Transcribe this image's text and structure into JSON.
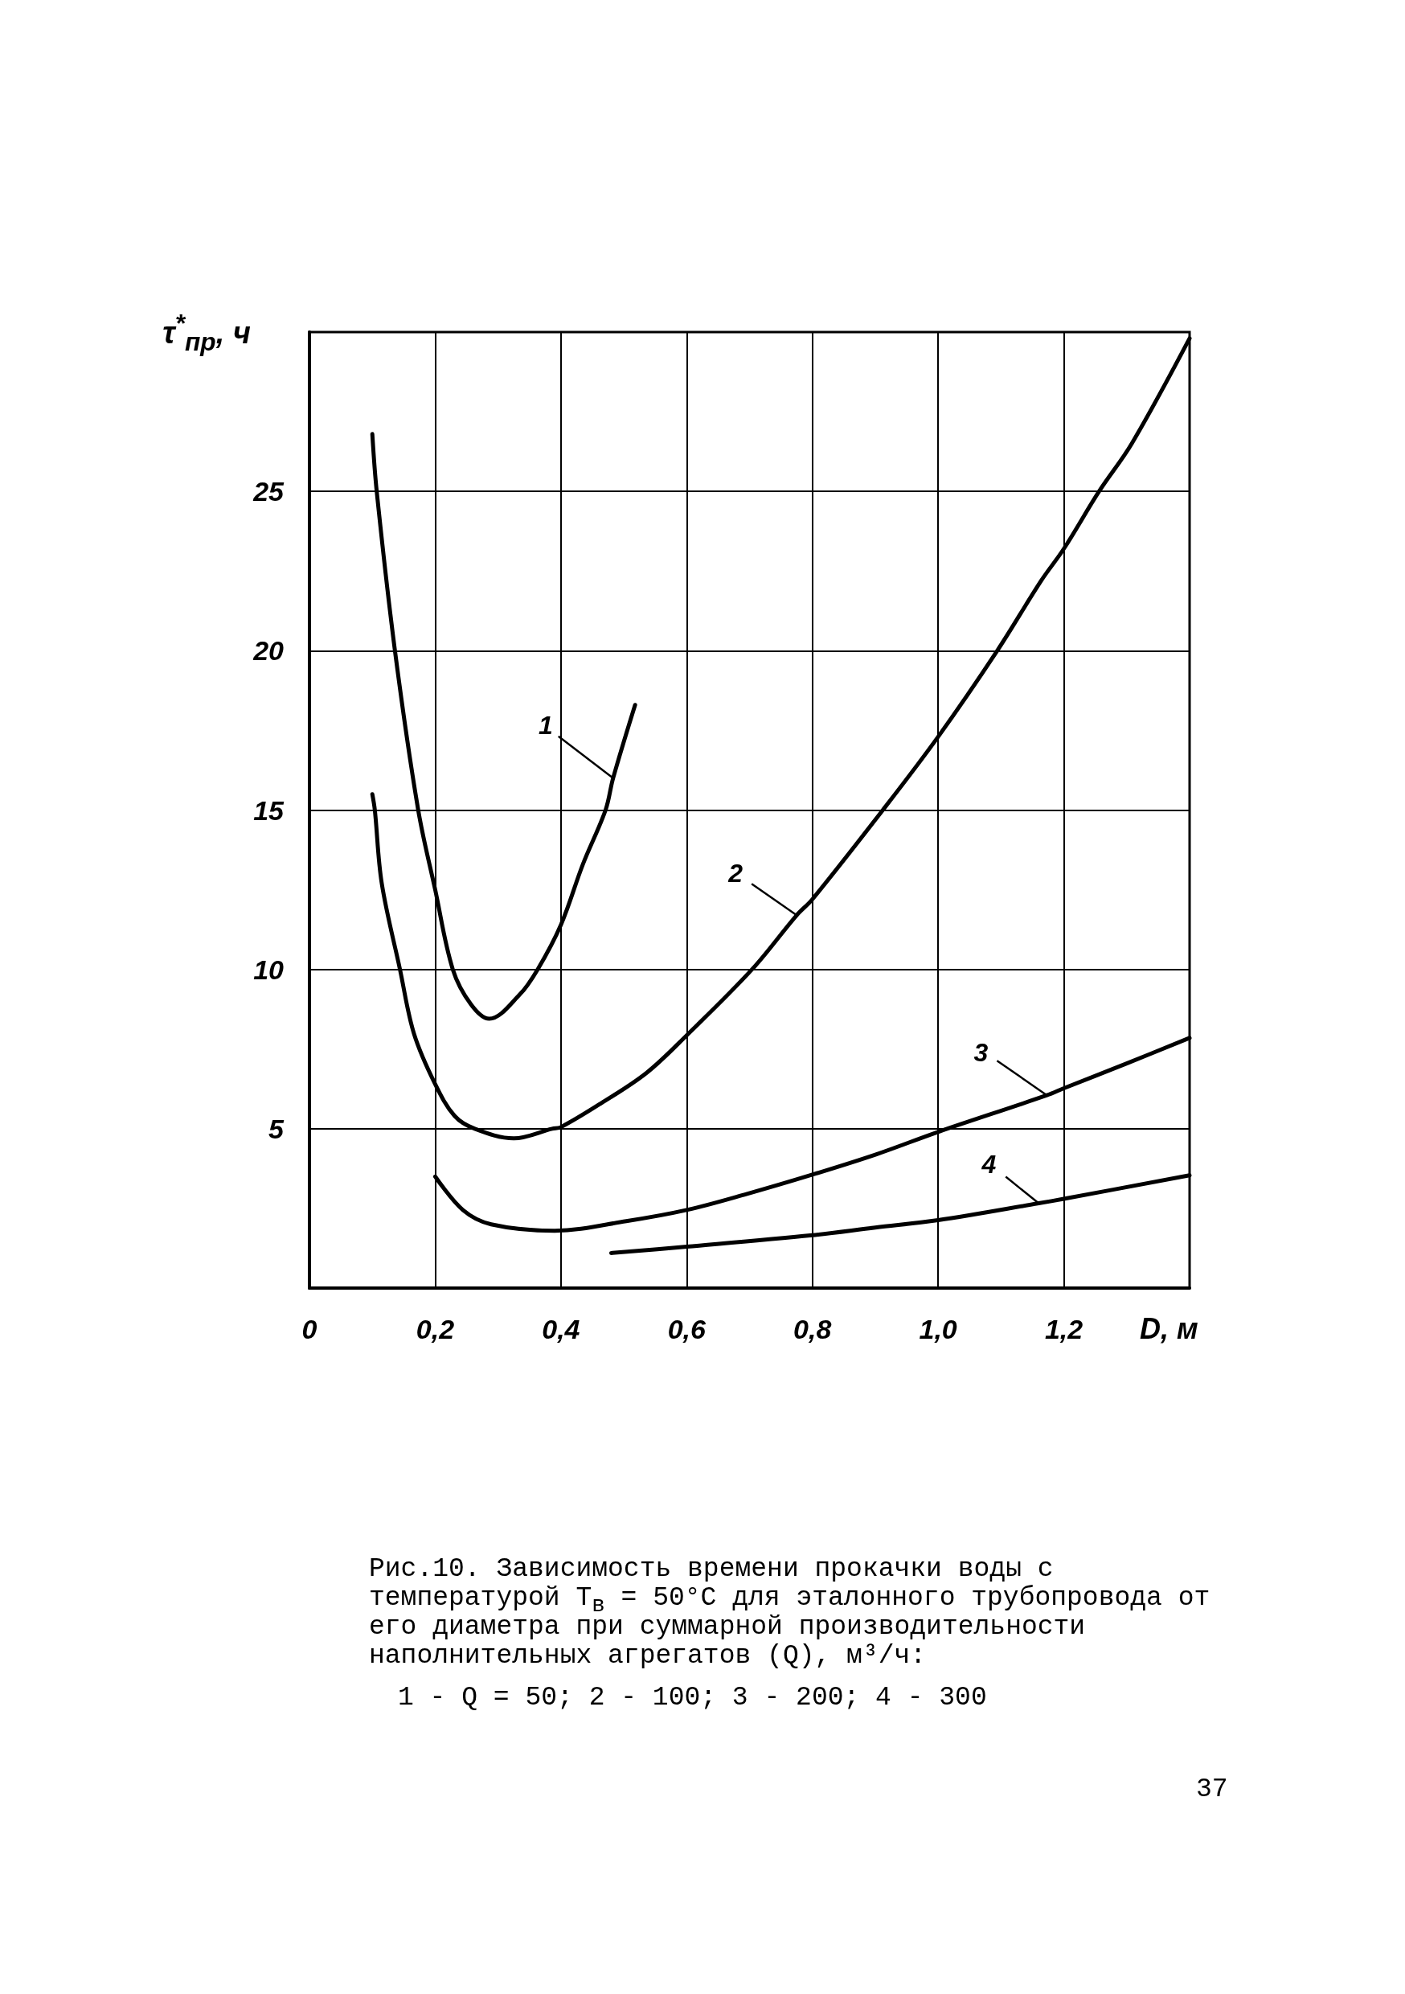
{
  "chart_data": {
    "type": "line",
    "xlabel": "D, м",
    "ylabel": "τ$^{*}$$_{пр}$, ч",
    "xlim": [
      0,
      1.4
    ],
    "ylim": [
      0,
      30
    ],
    "xticks": [
      0,
      {
        "value": 0.2,
        "label": "0,2"
      },
      {
        "value": 0.4,
        "label": "0,4"
      },
      {
        "value": 0.6,
        "label": "0,6"
      },
      {
        "value": 0.8,
        "label": "0,8"
      },
      {
        "value": 1.0,
        "label": "1,0"
      },
      {
        "value": 1.2,
        "label": "1,2"
      }
    ],
    "yticks": [
      5,
      10,
      15,
      20,
      25
    ],
    "grid": true,
    "marker": "none",
    "line_style": "solid",
    "series": [
      {
        "name": "1",
        "color": "#000000",
        "x": [
          0.1,
          0.107,
          0.136,
          0.173,
          0.2,
          0.228,
          0.257,
          0.286,
          0.334,
          0.363,
          0.4,
          0.435,
          0.471,
          0.483,
          0.518
        ],
        "values": [
          26.8,
          25,
          20,
          15,
          12.5,
          10,
          8.9,
          8.45,
          9.2,
          10,
          11.4,
          13.3,
          15,
          16,
          18.3
        ]
      },
      {
        "name": "2",
        "color": "#000000",
        "x": [
          0.1,
          0.104,
          0.115,
          0.144,
          0.166,
          0.2,
          0.231,
          0.263,
          0.325,
          0.386,
          0.4,
          0.464,
          0.536,
          0.6,
          0.704,
          0.775,
          0.8,
          0.912,
          1.0,
          1.094,
          1.164,
          1.2,
          1.256,
          1.308,
          1.4
        ],
        "values": [
          15.5,
          15,
          12.7,
          10,
          8,
          6.4,
          5.4,
          5,
          4.7,
          5,
          5.05,
          5.8,
          6.75,
          7.93,
          10,
          11.7,
          12.2,
          15,
          17.3,
          20,
          22.2,
          23.2,
          25,
          26.5,
          29.8
        ]
      },
      {
        "name": "3",
        "color": "#000000",
        "x": [
          0.2,
          0.244,
          0.289,
          0.39,
          0.504,
          0.6,
          0.695,
          0.8,
          0.902,
          1.0,
          1.173,
          1.2,
          1.3,
          1.4
        ],
        "values": [
          3.5,
          2.45,
          2.0,
          1.8,
          2.1,
          2.45,
          2.95,
          3.56,
          4.2,
          4.9,
          6.05,
          6.27,
          7.05,
          7.85
        ]
      },
      {
        "name": "4",
        "color": "#000000",
        "x": [
          0.48,
          0.6,
          0.8,
          0.9,
          1.0,
          1.16,
          1.2,
          1.4
        ],
        "values": [
          1.1,
          1.3,
          1.66,
          1.9,
          2.13,
          2.66,
          2.8,
          3.54
        ]
      }
    ],
    "annotations": [
      "Рис.10. Зависимость времени прокачки воды с температурой T$_{в}$ = 50°C для эталонного трубопровода от его диаметра при суммарной производительности наполнительных агрегатов (Q), м³/ч:",
      "1 - Q = 50; 2 - 100; 3 - 200; 4 - 300",
      "37"
    ]
  }
}
